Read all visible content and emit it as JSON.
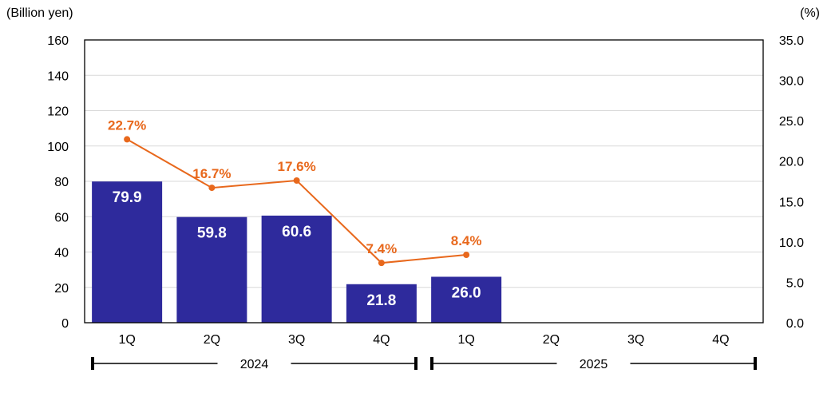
{
  "chart_data": {
    "type": "bar",
    "left_axis_unit": "(Billion yen)",
    "right_axis_unit": "(%)",
    "categories": [
      "1Q",
      "2Q",
      "3Q",
      "4Q",
      "1Q",
      "2Q",
      "3Q",
      "4Q"
    ],
    "year_groups": [
      {
        "label": "2024",
        "from_index": 0,
        "to_index": 3
      },
      {
        "label": "2025",
        "from_index": 4,
        "to_index": 7
      }
    ],
    "series": [
      {
        "type": "bar",
        "axis": "left",
        "values": [
          79.9,
          59.8,
          60.6,
          21.8,
          26.0,
          null,
          null,
          null
        ]
      },
      {
        "type": "line",
        "axis": "right",
        "values": [
          22.7,
          16.7,
          17.6,
          7.4,
          8.4,
          null,
          null,
          null
        ]
      }
    ],
    "bar_labels": [
      "79.9",
      "59.8",
      "60.6",
      "21.8",
      "26.0"
    ],
    "line_labels": [
      "22.7%",
      "16.7%",
      "17.6%",
      "7.4%",
      "8.4%"
    ],
    "y_left": {
      "min": 0,
      "max": 160,
      "ticks": [
        "0",
        "20",
        "40",
        "60",
        "80",
        "100",
        "120",
        "140",
        "160"
      ]
    },
    "y_right": {
      "min": 0,
      "max": 35,
      "ticks": [
        "0.0",
        "5.0",
        "10.0",
        "15.0",
        "20.0",
        "25.0",
        "30.0",
        "35.0"
      ]
    },
    "grid": true,
    "colors": {
      "bar": "#2e2a9c",
      "line": "#e8681c",
      "grid": "#d9d9d9",
      "frame": "#000000"
    }
  }
}
